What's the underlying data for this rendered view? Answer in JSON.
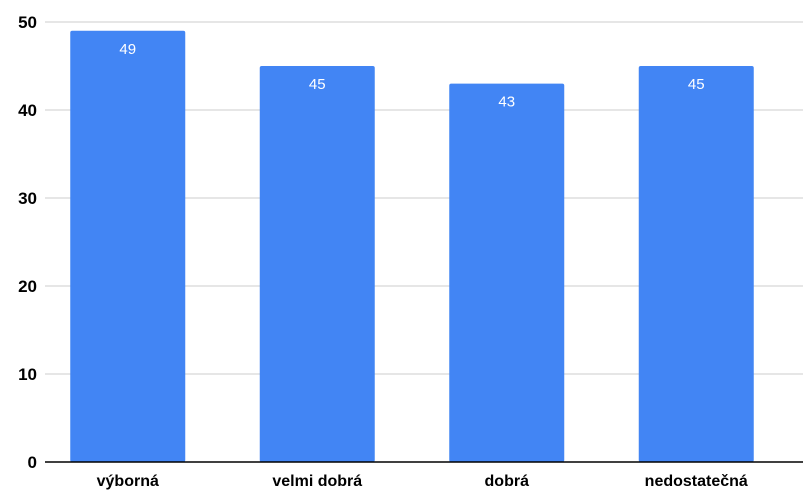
{
  "chart_data": {
    "type": "bar",
    "title": "",
    "xlabel": "",
    "ylabel": "",
    "categories": [
      "výborná",
      "velmi dobrá",
      "dobrá",
      "nedostatečná"
    ],
    "values": [
      49,
      45,
      43,
      45
    ],
    "data_labels": [
      "49",
      "45",
      "43",
      "45"
    ],
    "ylim": [
      0,
      50
    ],
    "yticks": [
      "0",
      "10",
      "20",
      "30",
      "40",
      "50"
    ],
    "grid": true,
    "legend": "none",
    "bar_color": "#4285f4",
    "grid_color": "#cccccc",
    "axis_color": "#000000"
  }
}
